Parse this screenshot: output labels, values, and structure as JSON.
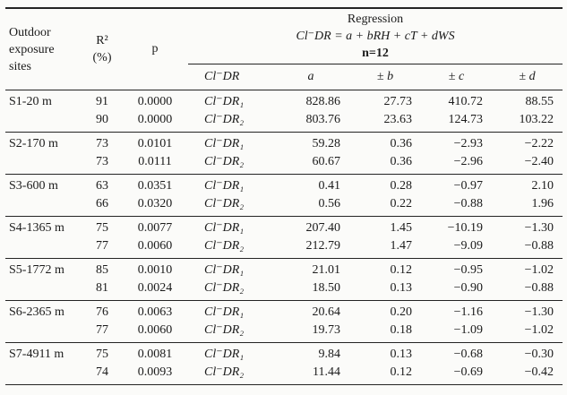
{
  "page": {
    "background": "#fbfbf9",
    "text_color": "#1b1b1b",
    "rule_color": "#242424"
  },
  "header": {
    "site_label_lines": [
      "Outdoor",
      "exposure",
      "sites"
    ],
    "r2_label": "R²",
    "r2_unit": "(%)",
    "p_label": "p",
    "regression": {
      "title": "Regression",
      "formula": "Cl⁻DR = a + bRH + cT + dWS",
      "n_label": "n=12"
    },
    "sub_columns": [
      "Cl⁻DR",
      "a",
      "± b",
      "± c",
      "± d"
    ]
  },
  "table": {
    "groups": [
      {
        "site": "S1-20 m",
        "rows": [
          {
            "r2": "91",
            "p": "0.0000",
            "dr": "Cl⁻DR₁",
            "a": "828.86",
            "b": "27.73",
            "c": "410.72",
            "d": "88.55"
          },
          {
            "r2": "90",
            "p": "0.0000",
            "dr": "Cl⁻DR₂",
            "a": "803.76",
            "b": "23.63",
            "c": "124.73",
            "d": "103.22"
          }
        ]
      },
      {
        "site": "S2-170 m",
        "rows": [
          {
            "r2": "73",
            "p": "0.0101",
            "dr": "Cl⁻DR₁",
            "a": "59.28",
            "b": "0.36",
            "c": "−2.93",
            "d": "−2.22"
          },
          {
            "r2": "73",
            "p": "0.0111",
            "dr": "Cl⁻DR₂",
            "a": "60.67",
            "b": "0.36",
            "c": "−2.96",
            "d": "−2.40"
          }
        ]
      },
      {
        "site": "S3-600 m",
        "rows": [
          {
            "r2": "63",
            "p": "0.0351",
            "dr": "Cl⁻DR₁",
            "a": "0.41",
            "b": "0.28",
            "c": "−0.97",
            "d": "2.10"
          },
          {
            "r2": "66",
            "p": "0.0320",
            "dr": "Cl⁻DR₂",
            "a": "0.56",
            "b": "0.22",
            "c": "−0.88",
            "d": "1.96"
          }
        ]
      },
      {
        "site": "S4-1365 m",
        "rows": [
          {
            "r2": "75",
            "p": "0.0077",
            "dr": "Cl⁻DR₁",
            "a": "207.40",
            "b": "1.45",
            "c": "−10.19",
            "d": "−1.30"
          },
          {
            "r2": "77",
            "p": "0.0060",
            "dr": "Cl⁻DR₂",
            "a": "212.79",
            "b": "1.47",
            "c": "−9.09",
            "d": "−0.88"
          }
        ]
      },
      {
        "site": "S5-1772 m",
        "rows": [
          {
            "r2": "85",
            "p": "0.0010",
            "dr": "Cl⁻DR₁",
            "a": "21.01",
            "b": "0.12",
            "c": "−0.95",
            "d": "−1.02"
          },
          {
            "r2": "81",
            "p": "0.0024",
            "dr": "Cl⁻DR₂",
            "a": "18.50",
            "b": "0.13",
            "c": "−0.90",
            "d": "−0.88"
          }
        ]
      },
      {
        "site": "S6-2365 m",
        "rows": [
          {
            "r2": "76",
            "p": "0.0063",
            "dr": "Cl⁻DR₁",
            "a": "20.64",
            "b": "0.20",
            "c": "−1.16",
            "d": "−1.30"
          },
          {
            "r2": "77",
            "p": "0.0060",
            "dr": "Cl⁻DR₂",
            "a": "19.73",
            "b": "0.18",
            "c": "−1.09",
            "d": "−1.02"
          }
        ]
      },
      {
        "site": "S7-4911 m",
        "rows": [
          {
            "r2": "75",
            "p": "0.0081",
            "dr": "Cl⁻DR₁",
            "a": "9.84",
            "b": "0.13",
            "c": "−0.68",
            "d": "−0.30"
          },
          {
            "r2": "74",
            "p": "0.0093",
            "dr": "Cl⁻DR₂",
            "a": "11.44",
            "b": "0.12",
            "c": "−0.69",
            "d": "−0.42"
          }
        ]
      }
    ]
  }
}
